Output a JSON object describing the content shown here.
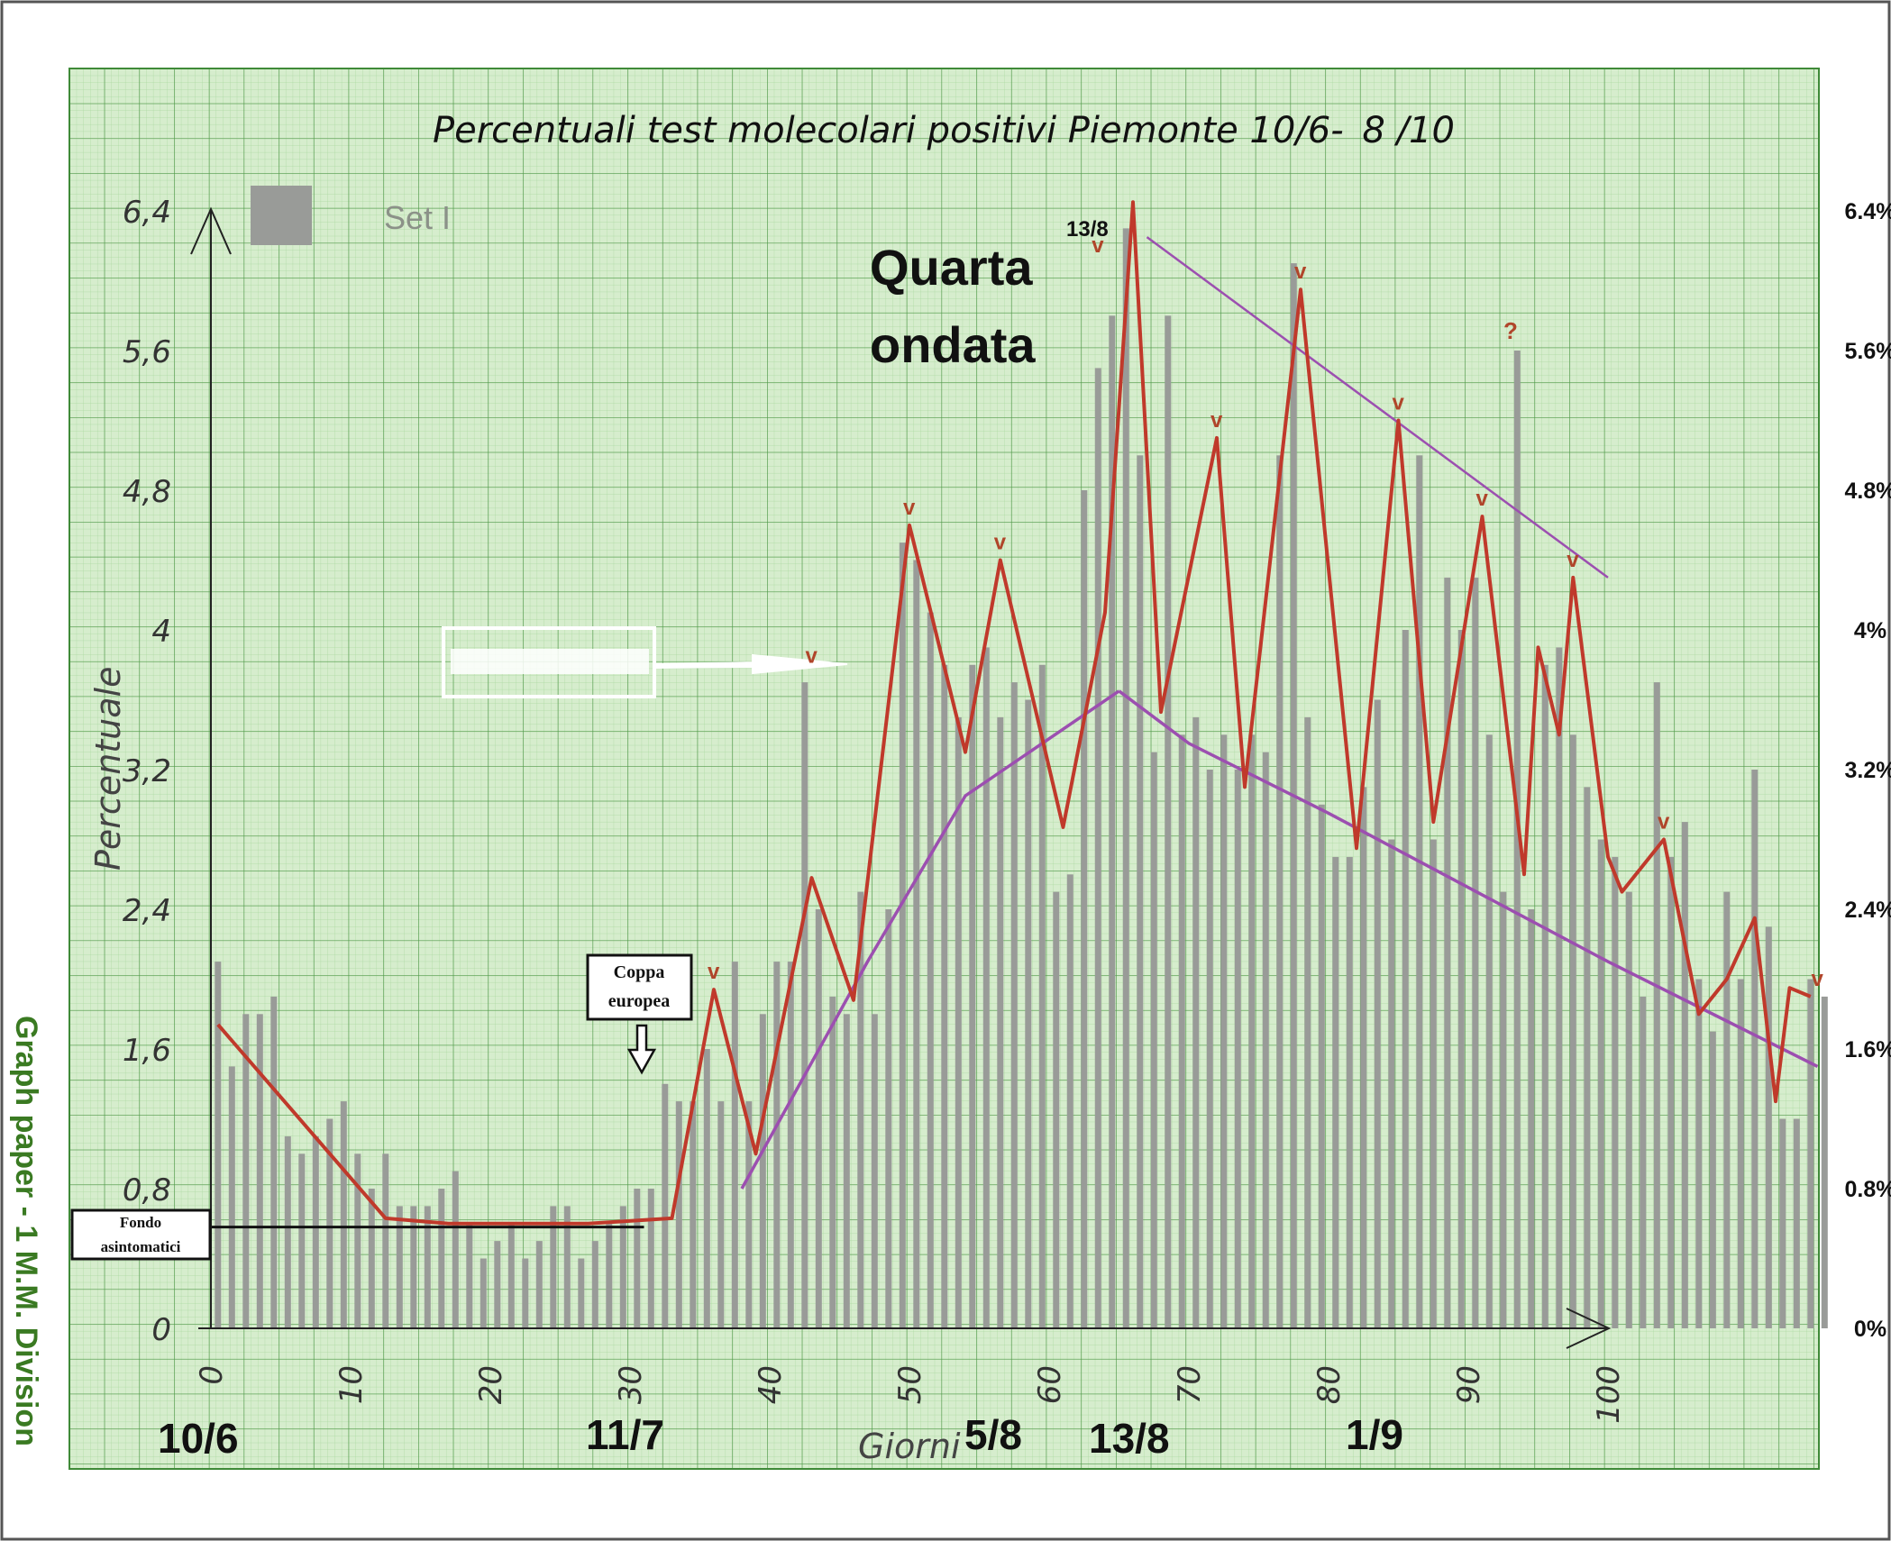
{
  "chart_data": {
    "type": "bar",
    "title": "Percentuali test molecolari positivi Piemonte 10/6-",
    "title_suffix": "8 /10",
    "xlabel": "Giorni",
    "ylabel": "Percentuale",
    "xlim": [
      0,
      115
    ],
    "ylim": [
      0,
      7
    ],
    "x_ticks": [
      "0",
      "10",
      "20",
      "30",
      "40",
      "50",
      "60",
      "70",
      "80",
      "90",
      "100"
    ],
    "y_ticks_left": [
      "0",
      "0,8",
      "1,6",
      "2,4",
      "3,2",
      "4",
      "4,8",
      "5,6",
      "6,4"
    ],
    "y_ticks_right": [
      "0%",
      "0.8%",
      "1.6%",
      "2.4%",
      "3.2%",
      "4%",
      "4.8%",
      "5.6%",
      "6.4%"
    ],
    "legend_label": "Set I",
    "legend_placement": "top-left",
    "grid": true,
    "series": [
      {
        "values": [
          2.1,
          1.5,
          1.8,
          1.8,
          1.9,
          1.1,
          1.0,
          1.1,
          1.2,
          1.3,
          1.0,
          0.8,
          1.0,
          0.7,
          0.7,
          0.7,
          0.8,
          0.9,
          0.6,
          0.4,
          0.5,
          0.6,
          0.4,
          0.5,
          0.7,
          0.7,
          0.4,
          0.5,
          0.6,
          0.7,
          0.8,
          0.8,
          1.4,
          1.3,
          1.3,
          1.6,
          1.3,
          2.1,
          1.3,
          1.8,
          2.1,
          2.1,
          3.7,
          2.4,
          1.9,
          1.8,
          2.5,
          1.8,
          2.4,
          4.5,
          4.4,
          4.1,
          3.8,
          3.5,
          3.8,
          3.9,
          3.5,
          3.7,
          3.6,
          3.8,
          2.5,
          2.6,
          4.8,
          5.5,
          5.8,
          6.3,
          5.0,
          3.3,
          5.8,
          3.4,
          3.5,
          3.2,
          3.4,
          3.2,
          3.4,
          3.3,
          5.0,
          6.1,
          3.5,
          3.0,
          2.7,
          2.7,
          3.1,
          3.6,
          2.8,
          4.0,
          5.0,
          2.8,
          4.3,
          4.0,
          4.3,
          3.4,
          2.5,
          5.6,
          2.4,
          3.8,
          3.9,
          3.4,
          3.1,
          2.8,
          2.7,
          2.5,
          1.9,
          3.7,
          2.7,
          2.9,
          2.0,
          1.7,
          2.5,
          2.0,
          3.2,
          2.3,
          1.2,
          1.2,
          2.0,
          1.9
        ]
      }
    ],
    "lines": {
      "red_zigzag": [
        [
          0.5,
          1.74
        ],
        [
          12.5,
          0.63
        ],
        [
          17,
          0.6
        ],
        [
          27,
          0.6
        ],
        [
          33,
          0.63
        ],
        [
          36,
          1.94
        ],
        [
          39,
          1.0
        ],
        [
          43,
          2.58
        ],
        [
          46,
          1.88
        ],
        [
          50,
          4.6
        ],
        [
          54,
          3.3
        ],
        [
          56.5,
          4.4
        ],
        [
          61,
          2.87
        ],
        [
          64,
          4.1
        ],
        [
          66,
          6.45
        ],
        [
          68,
          3.53
        ],
        [
          72,
          5.1
        ],
        [
          74,
          3.1
        ],
        [
          78,
          5.95
        ],
        [
          82,
          2.75
        ],
        [
          85,
          5.2
        ],
        [
          87.5,
          2.9
        ],
        [
          91,
          4.65
        ],
        [
          94,
          2.6
        ],
        [
          95,
          3.9
        ],
        [
          96.5,
          3.4
        ],
        [
          97.5,
          4.3
        ],
        [
          100,
          2.7
        ],
        [
          101,
          2.5
        ],
        [
          104,
          2.8
        ],
        [
          106.5,
          1.8
        ],
        [
          108.5,
          2.0
        ],
        [
          110.5,
          2.35
        ],
        [
          112,
          1.3
        ],
        [
          113,
          1.95
        ],
        [
          114.5,
          1.9
        ]
      ],
      "purple_rise": [
        [
          38,
          0.8
        ],
        [
          47,
          2.1
        ],
        [
          54,
          3.05
        ],
        [
          65,
          3.65
        ]
      ],
      "purple_fall": [
        [
          65,
          3.65
        ],
        [
          70,
          3.35
        ],
        [
          80,
          2.95
        ],
        [
          100,
          2.1
        ],
        [
          115,
          1.5
        ]
      ],
      "purple_trend_top": [
        [
          67,
          6.25
        ],
        [
          100,
          4.3
        ]
      ],
      "black_baseline": [
        [
          0,
          0.58
        ],
        [
          31,
          0.58
        ]
      ]
    },
    "annotations": {
      "quarta_line1": "Quarta",
      "quarta_line2": "ondata",
      "peak_label": "13/8",
      "coppa_line1": "Coppa",
      "coppa_line2": "europea",
      "fondo_line1": "Fondo",
      "fondo_line2": "asintomatici",
      "v_mark": "v",
      "question_mark": "?",
      "side_label": "Graph paper - 1 M.M. Division"
    },
    "date_labels": [
      "10/6",
      "11/7",
      "5/8",
      "13/8",
      "1/9"
    ]
  },
  "colors": {
    "paper": "#d4eccb",
    "grid_major": "#4f9848",
    "grid_minor": "#9fd095",
    "bar": "#999b98",
    "red_line": "#c0392b",
    "purple_line": "#9c4fb0",
    "side_label": "#3a7a22"
  }
}
